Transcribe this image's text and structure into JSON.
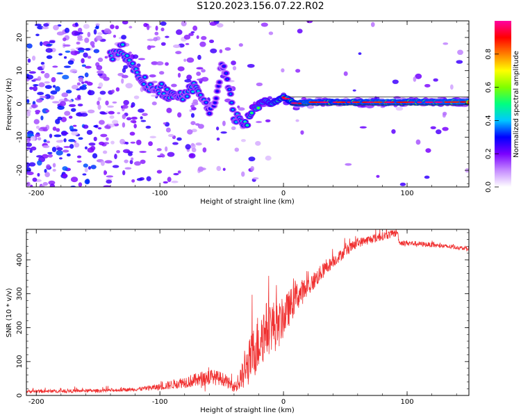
{
  "title": "S120.2023.156.07.22.R02",
  "chart_data": [
    {
      "type": "heatmap",
      "xlabel": "Height of straight line (km)",
      "ylabel": "Frequency (Hz)",
      "xlim": [
        -208,
        150
      ],
      "ylim": [
        -25,
        25
      ],
      "xticks": [
        -200,
        -100,
        0,
        100
      ],
      "yticks": [
        -20,
        -10,
        0,
        10,
        20
      ],
      "colorbar": {
        "label": "Normalized spectral amplitude",
        "range": [
          0.0,
          1.0
        ],
        "ticks": [
          0.0,
          0.2,
          0.4,
          0.6,
          0.8
        ],
        "colors": [
          "#ffffff",
          "#c58bff",
          "#7a00ff",
          "#0000ff",
          "#00c8ff",
          "#00ff80",
          "#80ff00",
          "#ffff00",
          "#ff8000",
          "#ff0000",
          "#ff00a0"
        ]
      },
      "ridge": {
        "description_values": "dominant frequency (Hz) vs height (km)",
        "x": [
          -140,
          -130,
          -110,
          -100,
          -90,
          -80,
          -72,
          -65,
          -60,
          -55,
          -50,
          -45,
          -40,
          -35,
          -30,
          -25,
          -20,
          -15,
          -10,
          -5,
          0,
          5,
          10,
          20,
          40,
          60,
          80,
          100,
          120,
          150
        ],
        "y": [
          15,
          16,
          5,
          4,
          2,
          3,
          5,
          1,
          -2,
          0,
          12,
          7,
          -4,
          -5,
          -6,
          -2,
          0,
          1,
          0,
          1,
          2,
          1,
          0,
          0.5,
          0.5,
          0.5,
          0.5,
          0.5,
          0.5,
          0.6
        ],
        "amplitude": [
          0.4,
          0.45,
          0.4,
          0.4,
          0.45,
          0.4,
          0.45,
          0.4,
          0.35,
          0.3,
          0.3,
          0.35,
          0.4,
          0.45,
          0.5,
          0.55,
          0.6,
          0.65,
          0.7,
          0.75,
          0.8,
          0.85,
          0.9,
          0.95,
          0.9,
          0.92,
          0.95,
          0.93,
          0.95,
          0.97
        ]
      }
    },
    {
      "type": "line",
      "xlabel": "Height of straight line (km)",
      "ylabel": "SNR (10 * v/v)",
      "xlim": [
        -208,
        150
      ],
      "ylim": [
        0,
        490
      ],
      "xticks": [
        -200,
        -100,
        0,
        100
      ],
      "yticks": [
        0,
        100,
        200,
        300,
        400
      ],
      "color": "#f03030",
      "trend": {
        "x": [
          -208,
          -150,
          -120,
          -100,
          -80,
          -70,
          -60,
          -50,
          -40,
          -35,
          -30,
          -25,
          -20,
          -15,
          -10,
          -5,
          0,
          10,
          20,
          30,
          40,
          50,
          60,
          70,
          80,
          90,
          92,
          94,
          100,
          110,
          120,
          130,
          140,
          150
        ],
        "y": [
          12,
          14,
          18,
          25,
          40,
          45,
          55,
          50,
          25,
          40,
          80,
          120,
          160,
          190,
          210,
          200,
          230,
          290,
          320,
          360,
          395,
          425,
          450,
          460,
          470,
          478,
          482,
          450,
          450,
          447,
          444,
          440,
          437,
          434
        ]
      },
      "noise": {
        "x": [
          -208,
          -120,
          -100,
          -60,
          -40,
          -30,
          -20,
          -10,
          0,
          20,
          40,
          60,
          90,
          95,
          150
        ],
        "y": [
          5,
          5,
          10,
          25,
          15,
          60,
          90,
          80,
          60,
          30,
          18,
          14,
          12,
          8,
          6
        ]
      }
    }
  ]
}
